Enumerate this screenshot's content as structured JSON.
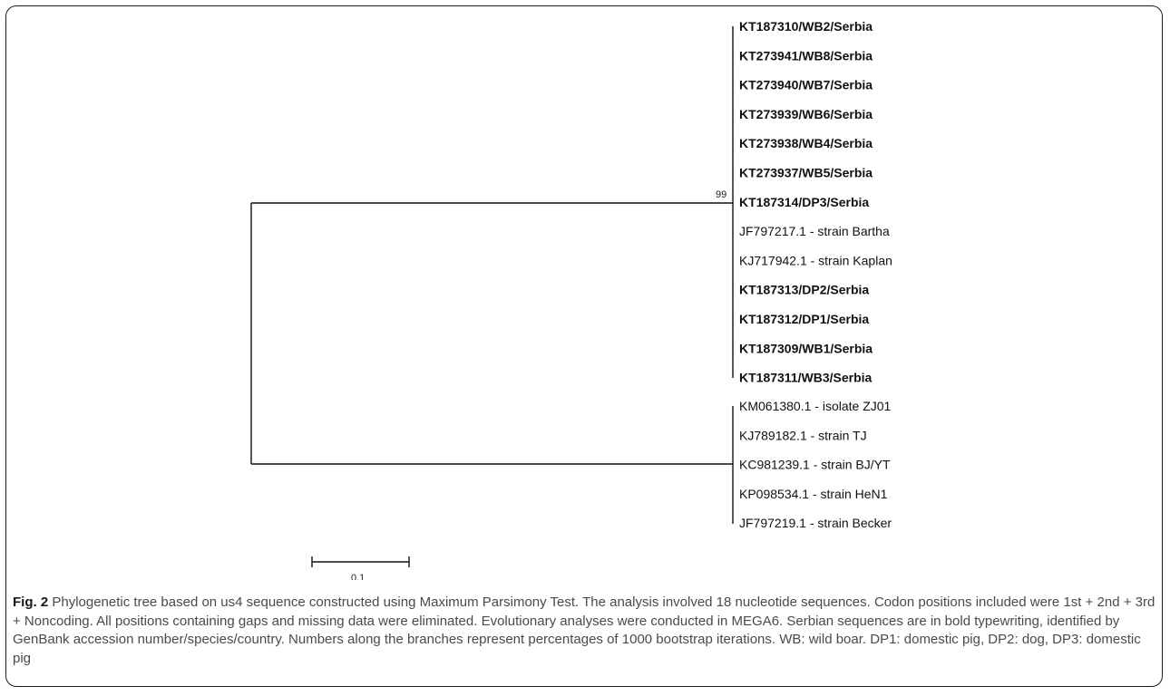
{
  "tree": {
    "bootstrap": "99",
    "scale_bar_label": "0.1",
    "clade_serbia": {
      "leaves": [
        {
          "label": "KT187310/WB2/Serbia",
          "bold": true
        },
        {
          "label": "KT273941/WB8/Serbia",
          "bold": true
        },
        {
          "label": "KT273940/WB7/Serbia",
          "bold": true
        },
        {
          "label": "KT273939/WB6/Serbia",
          "bold": true
        },
        {
          "label": "KT273938/WB4/Serbia",
          "bold": true
        },
        {
          "label": "KT273937/WB5/Serbia",
          "bold": true
        },
        {
          "label": "KT187314/DP3/Serbia",
          "bold": true
        },
        {
          "label": "JF797217.1 - strain Bartha",
          "bold": false
        },
        {
          "label": "KJ717942.1 - strain Kaplan",
          "bold": false
        },
        {
          "label": "KT187313/DP2/Serbia",
          "bold": true
        },
        {
          "label": "KT187312/DP1/Serbia",
          "bold": true
        },
        {
          "label": "KT187309/WB1/Serbia",
          "bold": true
        },
        {
          "label": "KT187311/WB3/Serbia",
          "bold": true
        }
      ]
    },
    "clade_asia": {
      "leaves": [
        {
          "label": "KM061380.1 - isolate ZJ01",
          "bold": false
        },
        {
          "label": "KJ789182.1 - strain TJ",
          "bold": false
        },
        {
          "label": "KC981239.1 - strain BJ/YT",
          "bold": false
        },
        {
          "label": "KP098534.1 - strain HeN1",
          "bold": false
        },
        {
          "label": "JF797219.1 - strain Becker",
          "bold": false
        }
      ]
    }
  },
  "caption": {
    "figure_label": "Fig. 2",
    "text": "Phylogenetic tree based on us4 sequence constructed using Maximum Parsimony Test. The analysis involved 18 nucleotide sequences. Codon positions included were 1st + 2nd + 3rd + Noncoding. All positions containing gaps and missing data were eliminated. Evolutionary analyses were conducted in MEGA6. Serbian sequences are in bold typewriting, identified by GenBank accession number/species/country. Numbers along the branches represent percentages of 1000 bootstrap iterations. WB: wild boar. DP1: domestic pig, DP2: dog, DP3: domestic pig"
  }
}
